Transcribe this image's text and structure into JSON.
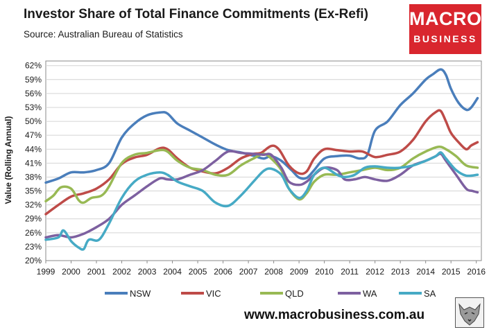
{
  "header": {
    "title": "Investor Share of Total Finance Commitments (Ex-Refi)",
    "subtitle": "Source: Australian Bureau of Statistics"
  },
  "logo": {
    "line1": "MACRO",
    "line2": "BUSINESS"
  },
  "footer": {
    "url": "www.macrobusiness.com.au"
  },
  "colors": {
    "NSW": "#4a7ebb",
    "VIC": "#be4b48",
    "QLD": "#98b954",
    "WA": "#7d60a0",
    "SA": "#46aac5"
  },
  "chart_data": {
    "type": "line",
    "title": "Investor Share of Total Finance Commitments (Ex-Refi)",
    "ylabel": "Value (Rolling Annual)",
    "ylim": [
      20,
      63
    ],
    "xlim": [
      1999,
      2016.2
    ],
    "grid": "horizontal",
    "legend_position": "bottom",
    "x_ticks": [
      "1999",
      "2000",
      "2001",
      "2002",
      "2003",
      "2004",
      "2005",
      "2006",
      "2007",
      "2008",
      "2009",
      "2010",
      "2011",
      "2012",
      "2013",
      "2014",
      "2015",
      "2016"
    ],
    "y_ticks": [
      "20%",
      "23%",
      "26%",
      "29%",
      "32%",
      "35%",
      "38%",
      "41%",
      "44%",
      "47%",
      "50%",
      "53%",
      "56%",
      "59%",
      "62%"
    ],
    "series": [
      {
        "name": "NSW",
        "points": [
          [
            1999,
            36.8
          ],
          [
            1999.5,
            37.7
          ],
          [
            2000,
            39
          ],
          [
            2000.5,
            39
          ],
          [
            2001,
            39.5
          ],
          [
            2001.5,
            41
          ],
          [
            2002,
            46.5
          ],
          [
            2002.5,
            49.5
          ],
          [
            2003,
            51.3
          ],
          [
            2003.5,
            51.9
          ],
          [
            2003.8,
            51.7
          ],
          [
            2004.2,
            49.5
          ],
          [
            2004.7,
            48
          ],
          [
            2005.2,
            46.5
          ],
          [
            2005.7,
            45
          ],
          [
            2006.2,
            43.8
          ],
          [
            2006.7,
            43.3
          ],
          [
            2007.2,
            42.6
          ],
          [
            2007.6,
            42
          ],
          [
            2007.9,
            42.5
          ],
          [
            2008.3,
            41.5
          ],
          [
            2008.7,
            39.5
          ],
          [
            2009,
            37.9
          ],
          [
            2009.3,
            37.8
          ],
          [
            2009.6,
            39.5
          ],
          [
            2010,
            42
          ],
          [
            2010.5,
            42.5
          ],
          [
            2011,
            42.6
          ],
          [
            2011.4,
            42
          ],
          [
            2011.7,
            42.8
          ],
          [
            2012,
            48
          ],
          [
            2012.5,
            50
          ],
          [
            2013,
            53.5
          ],
          [
            2013.5,
            56
          ],
          [
            2014,
            59
          ],
          [
            2014.3,
            60.2
          ],
          [
            2014.6,
            61.2
          ],
          [
            2014.8,
            60
          ],
          [
            2015,
            57
          ],
          [
            2015.3,
            54
          ],
          [
            2015.6,
            52.5
          ],
          [
            2015.8,
            53
          ],
          [
            2016.05,
            55
          ]
        ]
      },
      {
        "name": "VIC",
        "points": [
          [
            1999,
            30
          ],
          [
            1999.5,
            32
          ],
          [
            2000,
            33.8
          ],
          [
            2000.5,
            34.5
          ],
          [
            2001,
            35.5
          ],
          [
            2001.5,
            37.5
          ],
          [
            2002,
            40.8
          ],
          [
            2002.5,
            42.2
          ],
          [
            2003,
            42.8
          ],
          [
            2003.5,
            44.2
          ],
          [
            2003.8,
            44
          ],
          [
            2004.2,
            42
          ],
          [
            2004.7,
            40
          ],
          [
            2005.2,
            39.2
          ],
          [
            2005.7,
            38.8
          ],
          [
            2006.2,
            40
          ],
          [
            2006.7,
            42
          ],
          [
            2007.2,
            43
          ],
          [
            2007.5,
            43.2
          ],
          [
            2007.9,
            44.7
          ],
          [
            2008.2,
            44
          ],
          [
            2008.6,
            40.5
          ],
          [
            2009,
            38.8
          ],
          [
            2009.3,
            39.2
          ],
          [
            2009.6,
            42
          ],
          [
            2010,
            44
          ],
          [
            2010.5,
            43.8
          ],
          [
            2011,
            43.5
          ],
          [
            2011.5,
            43.5
          ],
          [
            2012,
            42.3
          ],
          [
            2012.5,
            42.8
          ],
          [
            2013,
            43.5
          ],
          [
            2013.5,
            46
          ],
          [
            2014,
            50
          ],
          [
            2014.4,
            52
          ],
          [
            2014.6,
            52.2
          ],
          [
            2014.8,
            50
          ],
          [
            2015,
            47.5
          ],
          [
            2015.3,
            45.5
          ],
          [
            2015.6,
            44
          ],
          [
            2015.8,
            44.8
          ],
          [
            2016.05,
            45.5
          ]
        ]
      },
      {
        "name": "QLD",
        "points": [
          [
            1999,
            32.8
          ],
          [
            1999.3,
            34
          ],
          [
            1999.6,
            35.8
          ],
          [
            2000,
            35.5
          ],
          [
            2000.3,
            33
          ],
          [
            2000.5,
            32.5
          ],
          [
            2000.8,
            33.5
          ],
          [
            2001.2,
            34
          ],
          [
            2001.5,
            36
          ],
          [
            2002,
            41
          ],
          [
            2002.5,
            42.8
          ],
          [
            2003,
            43.2
          ],
          [
            2003.5,
            43.8
          ],
          [
            2003.8,
            43.5
          ],
          [
            2004.2,
            41.5
          ],
          [
            2004.7,
            40
          ],
          [
            2005.2,
            39.5
          ],
          [
            2005.7,
            38.5
          ],
          [
            2006.2,
            38.5
          ],
          [
            2006.7,
            40.5
          ],
          [
            2007.2,
            42
          ],
          [
            2007.6,
            43
          ],
          [
            2007.9,
            42
          ],
          [
            2008.3,
            39.5
          ],
          [
            2008.6,
            35.5
          ],
          [
            2009,
            33.2
          ],
          [
            2009.3,
            34.5
          ],
          [
            2009.6,
            37
          ],
          [
            2010,
            38.5
          ],
          [
            2010.5,
            38.5
          ],
          [
            2011,
            39
          ],
          [
            2011.5,
            39.5
          ],
          [
            2012,
            40
          ],
          [
            2012.5,
            39.5
          ],
          [
            2013,
            40
          ],
          [
            2013.5,
            42
          ],
          [
            2014,
            43.5
          ],
          [
            2014.5,
            44.5
          ],
          [
            2014.8,
            44
          ],
          [
            2015.2,
            42.5
          ],
          [
            2015.6,
            40.5
          ],
          [
            2016.05,
            40
          ]
        ]
      },
      {
        "name": "WA",
        "points": [
          [
            1999,
            25
          ],
          [
            1999.5,
            25.5
          ],
          [
            2000,
            25
          ],
          [
            2000.5,
            25.8
          ],
          [
            2001,
            27.2
          ],
          [
            2001.5,
            29
          ],
          [
            2002,
            32
          ],
          [
            2002.5,
            34
          ],
          [
            2003,
            36
          ],
          [
            2003.5,
            37.7
          ],
          [
            2003.8,
            37.5
          ],
          [
            2004.2,
            37.5
          ],
          [
            2004.7,
            38.5
          ],
          [
            2005.2,
            39.5
          ],
          [
            2005.7,
            41.5
          ],
          [
            2006.2,
            43.5
          ],
          [
            2006.7,
            43.2
          ],
          [
            2007.2,
            43
          ],
          [
            2007.6,
            42.8
          ],
          [
            2007.9,
            42.8
          ],
          [
            2008.3,
            40
          ],
          [
            2008.6,
            37
          ],
          [
            2009,
            36.3
          ],
          [
            2009.3,
            37
          ],
          [
            2009.6,
            38.5
          ],
          [
            2010,
            40
          ],
          [
            2010.5,
            39.5
          ],
          [
            2010.8,
            37.5
          ],
          [
            2011.2,
            37.5
          ],
          [
            2011.6,
            38
          ],
          [
            2012,
            37.5
          ],
          [
            2012.5,
            37.2
          ],
          [
            2013,
            38.5
          ],
          [
            2013.5,
            40.5
          ],
          [
            2014,
            41.5
          ],
          [
            2014.4,
            42.5
          ],
          [
            2014.6,
            43
          ],
          [
            2014.8,
            41.5
          ],
          [
            2015.2,
            38.5
          ],
          [
            2015.6,
            35.5
          ],
          [
            2015.85,
            35
          ],
          [
            2016.05,
            34.7
          ]
        ]
      },
      {
        "name": "SA",
        "points": [
          [
            1999,
            24.5
          ],
          [
            1999.5,
            25
          ],
          [
            1999.7,
            26.5
          ],
          [
            2000,
            24.2
          ],
          [
            2000.3,
            22.8
          ],
          [
            2000.5,
            22.5
          ],
          [
            2000.7,
            24.5
          ],
          [
            2001.1,
            24.5
          ],
          [
            2001.5,
            28
          ],
          [
            2002,
            33.5
          ],
          [
            2002.5,
            37
          ],
          [
            2003,
            38.5
          ],
          [
            2003.5,
            39
          ],
          [
            2003.8,
            38.5
          ],
          [
            2004.2,
            37
          ],
          [
            2004.7,
            36
          ],
          [
            2005.2,
            35
          ],
          [
            2005.7,
            32.5
          ],
          [
            2006.2,
            31.8
          ],
          [
            2006.7,
            34
          ],
          [
            2007.2,
            37
          ],
          [
            2007.6,
            39.3
          ],
          [
            2007.9,
            39.8
          ],
          [
            2008.3,
            38.5
          ],
          [
            2008.6,
            35.5
          ],
          [
            2009,
            33.5
          ],
          [
            2009.3,
            35
          ],
          [
            2009.6,
            38.5
          ],
          [
            2010,
            40
          ],
          [
            2010.5,
            38.5
          ],
          [
            2010.8,
            38
          ],
          [
            2011.2,
            38.5
          ],
          [
            2011.6,
            40
          ],
          [
            2012,
            40.3
          ],
          [
            2012.5,
            40
          ],
          [
            2013,
            40
          ],
          [
            2013.5,
            40.5
          ],
          [
            2014,
            41.5
          ],
          [
            2014.4,
            42.5
          ],
          [
            2014.6,
            43.3
          ],
          [
            2014.8,
            42
          ],
          [
            2015.2,
            39.5
          ],
          [
            2015.6,
            38.3
          ],
          [
            2016.05,
            38.5
          ]
        ]
      }
    ]
  }
}
